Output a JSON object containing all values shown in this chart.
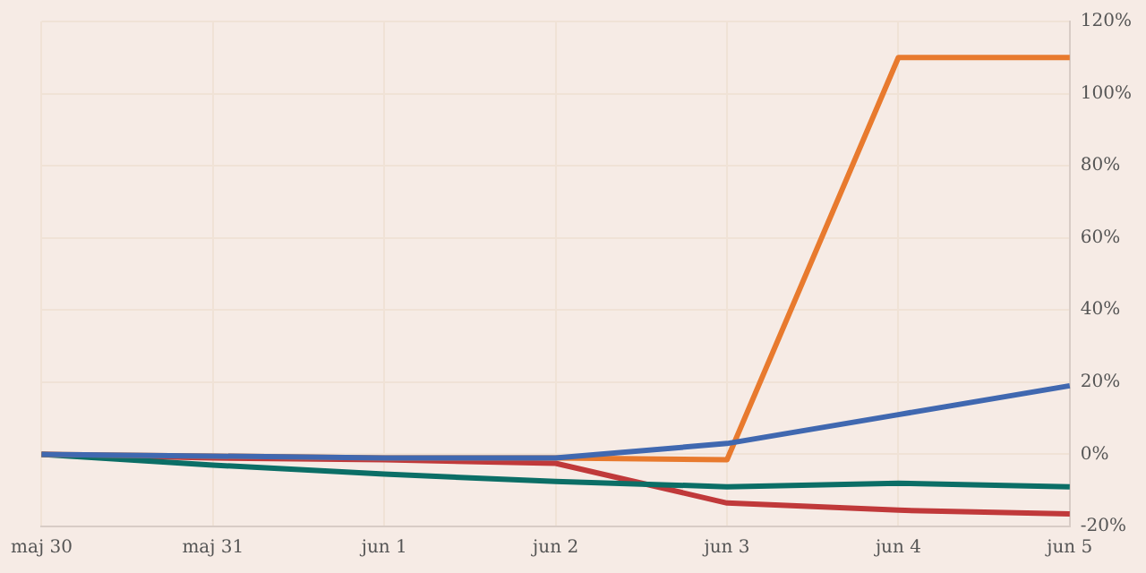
{
  "chart_data": {
    "type": "line",
    "categories": [
      "maj 30",
      "maj 31",
      "jun 1",
      "jun 2",
      "jun 3",
      "jun 4",
      "jun 5"
    ],
    "series": [
      {
        "color": "#4068b0",
        "values": [
          0,
          -0.5,
          -1,
          -1,
          3,
          11,
          19
        ]
      },
      {
        "color": "#e87a2e",
        "values": [
          0,
          -0.5,
          -1,
          -1,
          -1.5,
          110,
          110
        ]
      },
      {
        "color": "#0b6e66",
        "values": [
          0,
          -3,
          -5.5,
          -7.5,
          -9,
          -8,
          -9
        ]
      },
      {
        "color": "#c0393a",
        "values": [
          0,
          -1,
          -1.5,
          -2.5,
          -13.5,
          -15.5,
          -16.5
        ]
      }
    ],
    "ylim": [
      -20,
      120
    ],
    "yticks": [
      {
        "value": -20,
        "label": "-20%"
      },
      {
        "value": 0,
        "label": "0%"
      },
      {
        "value": 20,
        "label": "20%"
      },
      {
        "value": 40,
        "label": "40%"
      },
      {
        "value": 60,
        "label": "60%"
      },
      {
        "value": 80,
        "label": "80%"
      },
      {
        "value": 100,
        "label": "100%"
      },
      {
        "value": 120,
        "label": "120%"
      }
    ],
    "grid": true,
    "legend": false,
    "marker": "none",
    "line_style": "solid"
  }
}
